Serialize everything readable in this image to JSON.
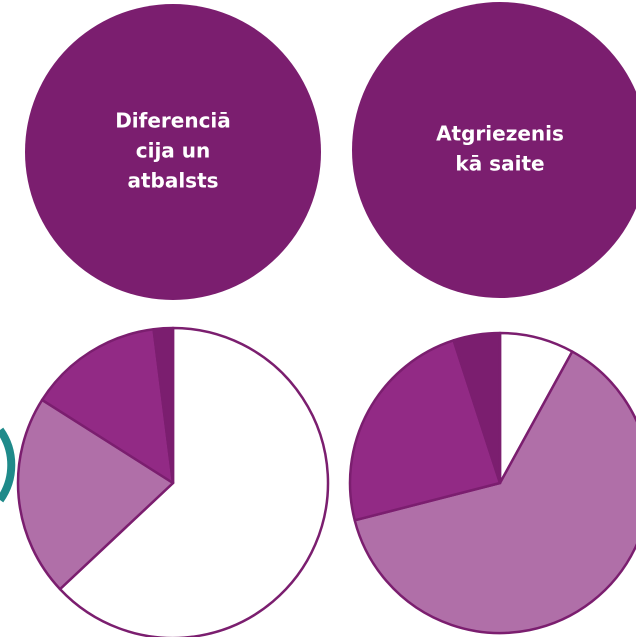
{
  "circles": [
    {
      "lines": [
        "Diferenciā",
        "cija un",
        "atbalsts"
      ]
    },
    {
      "lines": [
        "Atgriezenis",
        "kā saite"
      ]
    }
  ],
  "chart_data": [
    {
      "type": "pie",
      "values": [
        63,
        21,
        14,
        2
      ],
      "colors": [
        "#ffffff",
        "#b06fa8",
        "#922a85",
        "#7b1e6f"
      ],
      "edge": "#7b1e6f"
    },
    {
      "type": "pie",
      "values": [
        8,
        63,
        24,
        5
      ],
      "colors": [
        "#ffffff",
        "#b06fa8",
        "#922a85",
        "#7b1e6f"
      ],
      "edge": "#7b1e6f"
    }
  ]
}
